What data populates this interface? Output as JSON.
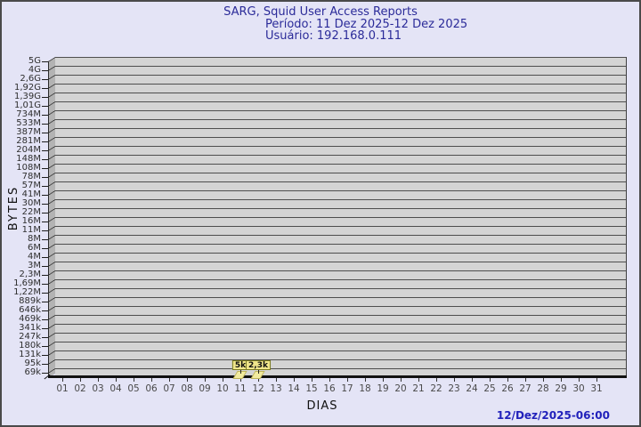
{
  "header": {
    "title": "SARG, Squid User Access Reports",
    "period": "Período: 11 Dez 2025-12 Dez 2025",
    "user": "Usuário: 192.168.0.111"
  },
  "footer": {
    "timestamp": "12/Dez/2025-06:00"
  },
  "chart_data": {
    "type": "bar",
    "title": "SARG, Squid User Access Reports",
    "subtitle": "Período: 11 Dez 2025-12 Dez 2025 — Usuário: 192.168.0.111",
    "xlabel": "DIAS",
    "ylabel": "BYTES",
    "y_scale": "log",
    "grid": "horizontal",
    "style": "3d",
    "y_ticks": [
      "5G",
      "4G",
      "2,6G",
      "1,92G",
      "1,39G",
      "1,01G",
      "734M",
      "533M",
      "387M",
      "281M",
      "204M",
      "148M",
      "108M",
      "78M",
      "57M",
      "41M",
      "30M",
      "22M",
      "16M",
      "11M",
      "8M",
      "6M",
      "4M",
      "3M",
      "2,3M",
      "1,69M",
      "1,22M",
      "889k",
      "646k",
      "469k",
      "341k",
      "247k",
      "180k",
      "131k",
      "95k",
      "69k"
    ],
    "x_ticks": [
      "01",
      "02",
      "03",
      "04",
      "05",
      "06",
      "07",
      "08",
      "09",
      "10",
      "11",
      "12",
      "13",
      "14",
      "15",
      "16",
      "17",
      "18",
      "19",
      "20",
      "21",
      "22",
      "23",
      "24",
      "25",
      "26",
      "27",
      "28",
      "29",
      "30",
      "31"
    ],
    "bars": [
      {
        "day": 11,
        "label": "5k",
        "value_bytes": 5000
      },
      {
        "day": 12,
        "label": "2,3k",
        "value_bytes": 2300
      }
    ],
    "colors": {
      "background": "#e4e4f6",
      "plot_face": "#d4d4d4",
      "plot_wall": "#b3b3b3",
      "gridline": "#4e4e4e",
      "title_text": "#2b2b99",
      "timestamp_text": "#2121bb",
      "bar_fill": "#f2eb9e",
      "bar_label_bg": "#f0e68c"
    }
  }
}
